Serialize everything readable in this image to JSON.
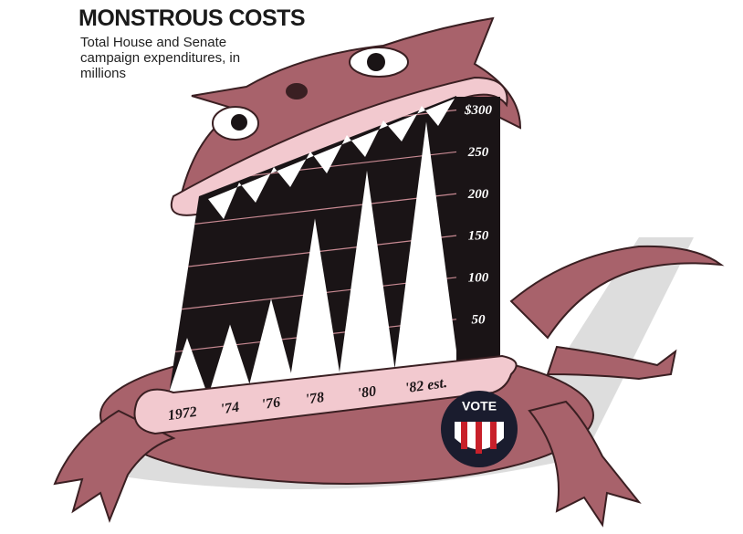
{
  "chart_data": {
    "type": "bar",
    "title": "MONSTROUS COSTS",
    "subtitle": "Total House and Senate campaign expenditures, in millions",
    "categories": [
      "1972",
      "'74",
      "'76",
      "'78",
      "'80",
      "'82 est."
    ],
    "values": [
      65,
      75,
      100,
      190,
      240,
      290
    ],
    "color": "#ffffff",
    "ylim": [
      0,
      300
    ],
    "yticks": [
      {
        "value": 300,
        "label": "$300"
      },
      250,
      200,
      150,
      100,
      50
    ],
    "grid": true,
    "badge": "VOTE"
  }
}
